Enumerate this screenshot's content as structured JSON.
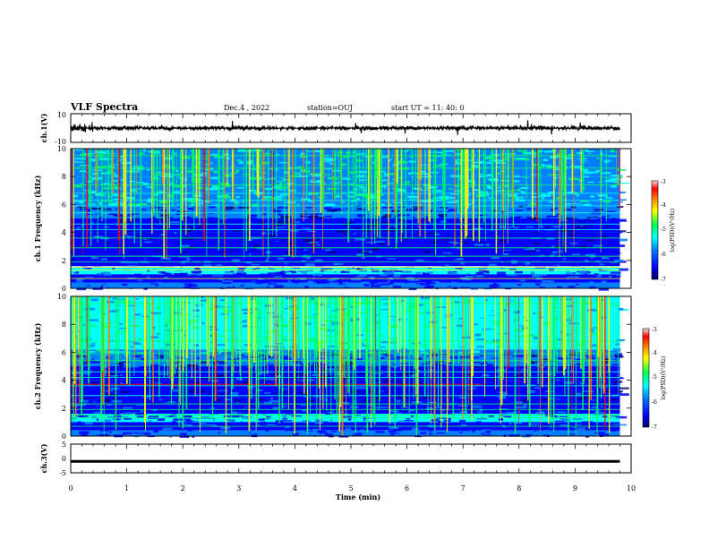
{
  "header": {
    "title": "VLF Spectra",
    "date": "Dec.4 , 2022",
    "station": "station=OUJ",
    "start_ut": "start UT = 11: 40: 0"
  },
  "chart_data": [
    {
      "type": "line",
      "name": "ch1-waveform",
      "ylabel": "ch.1(V)",
      "ylim": [
        -10,
        10
      ],
      "yticks": [
        "10",
        "-10"
      ],
      "xlim": [
        0,
        10
      ],
      "trace_level": 0,
      "trace_amplitude": 1.5
    },
    {
      "type": "heatmap",
      "name": "ch1-spectrogram",
      "ylabel": "ch.1 Frequency (kHz)",
      "ylim": [
        0,
        10
      ],
      "yticks": [
        "0",
        "2",
        "4",
        "6",
        "8",
        "10"
      ],
      "xlim": [
        0,
        10
      ],
      "data_end_min": 9.8,
      "colorbar": {
        "label": "log(PSD)(V²/Hz)",
        "range": [
          -7,
          -3
        ],
        "ticks": [
          "-3",
          "-4",
          "-5",
          "-6",
          "-7"
        ]
      }
    },
    {
      "type": "heatmap",
      "name": "ch2-spectrogram",
      "ylabel": "ch.2 Frequency (kHz)",
      "ylim": [
        0,
        10
      ],
      "yticks": [
        "0",
        "2",
        "4",
        "6",
        "8",
        "10"
      ],
      "xlim": [
        0,
        10
      ],
      "data_end_min": 9.8,
      "colorbar": {
        "label": "log(PSD)(V²/Hz)",
        "range": [
          -7,
          -3
        ],
        "ticks": [
          "-3",
          "-4",
          "-5",
          "-6",
          "-7"
        ]
      }
    },
    {
      "type": "line",
      "name": "ch3-waveform",
      "ylabel": "ch.3(V)",
      "ylim": [
        -5,
        5
      ],
      "yticks": [
        "5",
        "0",
        "-5"
      ],
      "xlim": [
        0,
        10
      ],
      "trace_level": -1,
      "xlabel": "Time (min)",
      "xticks": [
        "0",
        "1",
        "2",
        "3",
        "4",
        "5",
        "6",
        "7",
        "8",
        "9",
        "10"
      ]
    }
  ],
  "colors": {
    "colormap": [
      "#00007f",
      "#0000ff",
      "#0080ff",
      "#00ffff",
      "#00ff60",
      "#ffff00",
      "#ff8000",
      "#ff0000",
      "#ffc0c0"
    ],
    "axis": "#000000"
  }
}
